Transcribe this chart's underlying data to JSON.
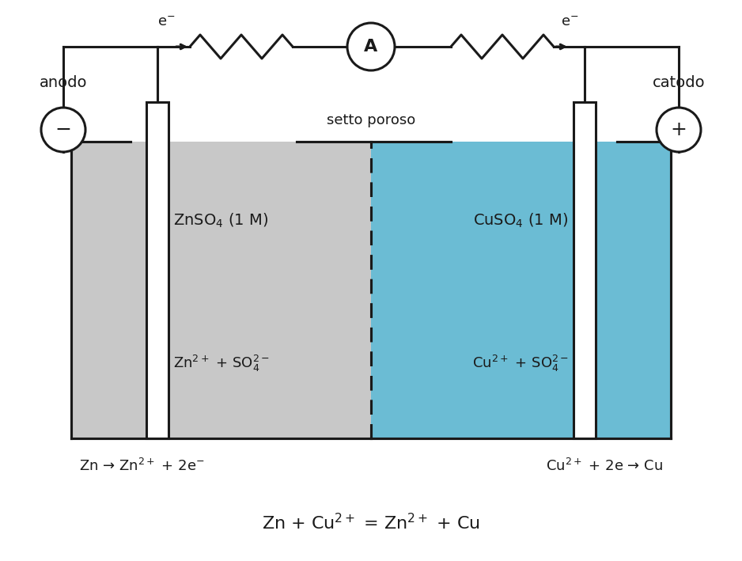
{
  "bg_color": "#ffffff",
  "gray_solution_color": "#c8c8c8",
  "blue_solution_color": "#6bbcd4",
  "electrode_color": "#ffffff",
  "line_color": "#1a1a1a",
  "text_color": "#1a1a1a",
  "fig_width": 9.38,
  "fig_height": 7.09,
  "title": "",
  "anodo_label": "anodo",
  "catodo_label": "catodo",
  "minus_label": "−",
  "plus_label": "+",
  "setto_label": "setto poroso",
  "znso4_label": "ZnSO$_4$ (1 M)",
  "cuso4_label": "CuSO$_4$ (1 M)",
  "zn_ions_label": "Zn$^{2+}$ + SO$_4^{2-}$",
  "cu_ions_label": "Cu$^{2+}$ + SO$_4^{2-}$",
  "left_reaction": "Zn → Zn$^{2+}$ + 2e$^{-}$",
  "right_reaction": "Cu$^{2+}$ + 2e → Cu",
  "overall_reaction": "Zn + Cu$^{2+}$ = Zn$^{2+}$ + Cu",
  "e_left_label": "e$^{-}$",
  "e_right_label": "e$^{-}$",
  "ammeter_label": "A"
}
